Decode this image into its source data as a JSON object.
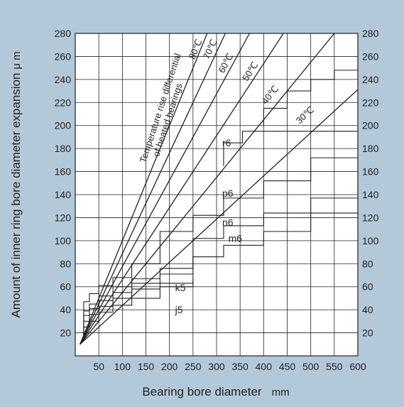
{
  "colors": {
    "background": "#b3c9d9",
    "plot_background": "#ffffff",
    "grid": "#231f20",
    "lines": "#231f20"
  },
  "chart_data": {
    "type": "line",
    "xlabel": "Bearing bore diameter",
    "xunit": "mm",
    "ylabel": "Amount of inner ring bore diameter expansion",
    "yunit": "μ m",
    "xlim": [
      0,
      600
    ],
    "ylim": [
      0,
      280
    ],
    "xticks": [
      "50",
      "100",
      "150",
      "200",
      "250",
      "300",
      "350",
      "400",
      "450",
      "500",
      "550",
      "600"
    ],
    "yticks": [
      "20",
      "40",
      "60",
      "80",
      "100",
      "120",
      "140",
      "160",
      "180",
      "200",
      "220",
      "240",
      "260",
      "280"
    ],
    "grid": true,
    "annotation_lines": [
      "Temperature rise differential",
      "of heated bearings"
    ],
    "temperature_lines": [
      {
        "label": "80℃",
        "delta_t": 80,
        "label_x": 253,
        "label_y": 257
      },
      {
        "label": "70℃",
        "delta_t": 70,
        "label_x": 283,
        "label_y": 257
      },
      {
        "label": "60℃",
        "delta_t": 60,
        "label_x": 315,
        "label_y": 245
      },
      {
        "label": "50℃",
        "delta_t": 50,
        "label_x": 365,
        "label_y": 238
      },
      {
        "label": "40℃",
        "delta_t": 40,
        "label_x": 405,
        "label_y": 218
      },
      {
        "label": "30℃",
        "delta_t": 30,
        "label_x": 476,
        "label_y": 201
      }
    ],
    "fit_series": [
      {
        "name": "r6",
        "label_x": 312,
        "label_y": 182,
        "steps": [
          [
            315,
            165,
            180
          ],
          [
            315,
            180,
            185
          ],
          [
            355,
            185,
            195
          ]
        ]
      },
      {
        "name": "p6",
        "label_x": 312,
        "label_y": 138,
        "steps": [
          [
            18,
            18,
            47
          ],
          [
            30,
            47,
            54
          ],
          [
            50,
            54,
            61
          ],
          [
            80,
            61,
            68
          ],
          [
            120,
            68,
            80
          ],
          [
            180,
            80,
            108
          ],
          [
            250,
            108,
            122
          ],
          [
            315,
            122,
            137
          ],
          [
            400,
            137,
            152
          ],
          [
            500,
            152,
            172
          ]
        ]
      },
      {
        "name": "n6",
        "label_x": 312,
        "label_y": 113,
        "steps": [
          [
            18,
            18,
            39
          ],
          [
            30,
            39,
            45
          ],
          [
            50,
            45,
            52
          ],
          [
            80,
            52,
            60
          ],
          [
            120,
            60,
            67
          ],
          [
            180,
            67,
            76
          ],
          [
            250,
            76,
            102
          ],
          [
            315,
            102,
            113
          ],
          [
            400,
            113,
            124
          ],
          [
            500,
            124,
            137
          ]
        ]
      },
      {
        "name": "m6",
        "label_x": 325,
        "label_y": 99,
        "steps": [
          [
            18,
            18,
            35
          ],
          [
            30,
            35,
            41
          ],
          [
            50,
            41,
            48
          ],
          [
            80,
            48,
            55
          ],
          [
            120,
            55,
            63
          ],
          [
            180,
            63,
            71
          ],
          [
            250,
            71,
            86
          ],
          [
            315,
            86,
            96
          ],
          [
            400,
            96,
            108
          ],
          [
            500,
            108,
            124
          ]
        ]
      },
      {
        "name": "k5",
        "label_x": 212,
        "label_y": 56,
        "steps": [
          [
            18,
            18,
            30
          ],
          [
            30,
            30,
            36
          ],
          [
            50,
            36,
            43
          ],
          [
            80,
            43,
            50
          ],
          [
            120,
            50,
            58
          ],
          [
            180,
            58,
            63
          ],
          [
            250,
            63,
            70
          ]
        ]
      },
      {
        "name": "j5",
        "label_x": 212,
        "label_y": 37,
        "steps": [
          [
            18,
            14,
            25
          ],
          [
            30,
            25,
            30
          ],
          [
            50,
            30,
            38
          ],
          [
            80,
            38,
            44
          ],
          [
            120,
            44,
            50
          ],
          [
            180,
            50,
            60
          ],
          [
            250,
            60,
            65
          ]
        ]
      },
      {
        "name": "outer-step",
        "label_x": null,
        "label_y": null,
        "steps": [
          [
            400,
            200,
            215
          ],
          [
            450,
            215,
            230
          ],
          [
            500,
            230,
            240
          ],
          [
            550,
            240,
            248
          ]
        ]
      }
    ]
  }
}
